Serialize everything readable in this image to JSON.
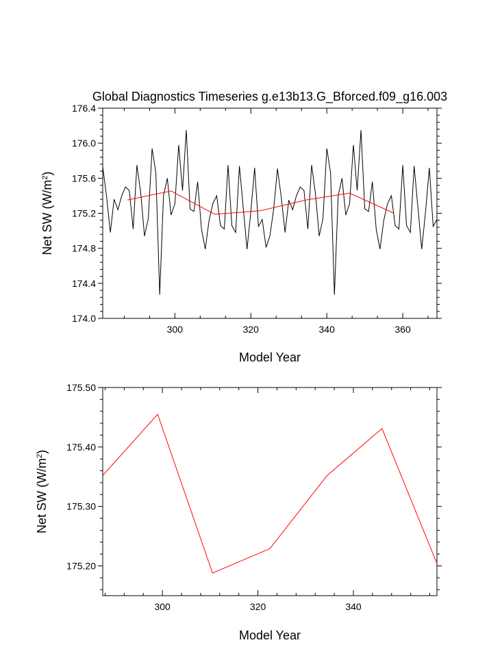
{
  "chart_data": [
    {
      "type": "line",
      "title": "Global Diagnostics Timeseries g.e13b13.G_Bforced.f09_g16.003",
      "xlabel": "Model Year",
      "ylabel_main": "Net SW (W/m",
      "ylabel_sup": "2",
      "ylabel_close": ")",
      "xlim": [
        281,
        369
      ],
      "ylim": [
        174.0,
        176.4
      ],
      "xticks": [
        300,
        320,
        340,
        360
      ],
      "yticks": [
        174.0,
        174.4,
        174.8,
        175.2,
        175.6,
        176.0,
        176.4
      ],
      "ytick_labels": [
        "174.0",
        "174.4",
        "174.8",
        "175.2",
        "175.6",
        "176.0",
        "176.4"
      ],
      "series": [
        {
          "color": "#000000",
          "x": [
            281,
            282,
            283,
            284,
            285,
            286,
            287,
            288,
            289,
            290,
            291,
            292,
            293,
            294,
            295,
            296,
            297,
            298,
            299,
            300,
            301,
            302,
            303,
            304,
            305,
            306,
            307,
            308,
            309,
            310,
            311,
            312,
            313,
            314,
            315,
            316,
            317,
            318,
            319,
            320,
            321,
            322,
            323,
            324,
            325,
            326,
            327,
            328,
            329,
            330,
            331,
            332,
            333,
            334,
            335,
            336,
            337,
            338,
            339,
            340,
            341,
            342,
            343,
            344,
            345,
            346,
            347,
            348,
            349,
            350,
            351,
            352,
            353,
            354,
            355,
            356,
            357,
            358,
            359,
            360,
            361,
            362,
            363,
            364,
            365,
            366,
            367,
            368,
            369
          ],
          "values": [
            175.73,
            175.4,
            174.98,
            175.36,
            175.24,
            175.4,
            175.5,
            175.46,
            175.02,
            175.75,
            175.43,
            174.94,
            175.14,
            175.94,
            175.66,
            174.27,
            175.4,
            175.6,
            175.18,
            175.31,
            175.98,
            175.46,
            176.15,
            175.25,
            175.22,
            175.56,
            175.02,
            174.79,
            175.12,
            175.31,
            175.4,
            175.06,
            175.02,
            175.75,
            175.06,
            174.98,
            175.74,
            175.26,
            174.79,
            175.22,
            175.72,
            175.05,
            175.13,
            174.81,
            174.94,
            175.24,
            175.71,
            175.39,
            174.98,
            175.35,
            175.24,
            175.4,
            175.5,
            175.46,
            175.02,
            175.75,
            175.43,
            174.94,
            175.14,
            175.94,
            175.66,
            174.27,
            175.4,
            175.6,
            175.18,
            175.31,
            175.98,
            175.46,
            176.15,
            175.25,
            175.22,
            175.56,
            175.02,
            174.79,
            175.12,
            175.31,
            175.4,
            175.06,
            175.02,
            175.75,
            175.06,
            174.98,
            175.74,
            175.26,
            174.79,
            175.22,
            175.72,
            175.05,
            175.13
          ]
        },
        {
          "color": "#ff0000",
          "x": [
            287.5,
            299.0,
            310.5,
            322.5,
            334.5,
            346.0,
            357.5
          ],
          "values": [
            175.352,
            175.455,
            175.188,
            175.229,
            175.352,
            175.431,
            175.204
          ]
        }
      ]
    },
    {
      "type": "line",
      "xlabel": "Model Year",
      "ylabel_main": "Net SW (W/m",
      "ylabel_sup": "2",
      "ylabel_close": ")",
      "xlim": [
        287.5,
        357.5
      ],
      "ylim": [
        175.15,
        175.5
      ],
      "xticks": [
        300,
        320,
        340
      ],
      "yticks": [
        175.2,
        175.3,
        175.4,
        175.5
      ],
      "ytick_labels": [
        "175.20",
        "175.30",
        "175.40",
        "175.50"
      ],
      "series": [
        {
          "color": "#ff0000",
          "x": [
            287.5,
            299.0,
            310.5,
            322.5,
            334.5,
            346.0,
            357.5
          ],
          "values": [
            175.352,
            175.455,
            175.188,
            175.229,
            175.352,
            175.431,
            175.204
          ]
        }
      ]
    }
  ]
}
